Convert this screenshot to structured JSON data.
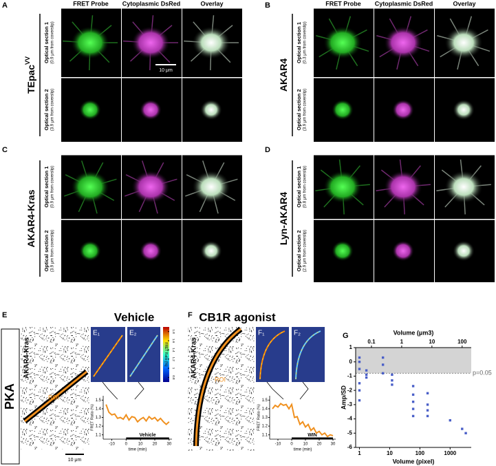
{
  "columns": [
    "FRET Probe",
    "Cytoplasmic DsRed",
    "Overlay"
  ],
  "panels": [
    {
      "label": "A",
      "probe": "TEpac",
      "probe_sup": "VV",
      "sections": [
        {
          "title": "Optical section 1",
          "depth": "(0.9 μm from coverslip)"
        },
        {
          "title": "Optical section 2",
          "depth": "(3.9 μm from coverslip)"
        }
      ],
      "scale_bar": "10 μm"
    },
    {
      "label": "B",
      "probe": "AKAR4",
      "sections": [
        {
          "title": "Optical section 1",
          "depth": "(0.3 μm from coverslip)"
        },
        {
          "title": "Optical section 2",
          "depth": "(3.9 μm from coverslip)"
        }
      ]
    },
    {
      "label": "C",
      "probe": "AKAR4-Kras",
      "sections": [
        {
          "title": "Optical section 1",
          "depth": "(0.9 μm from coverslip)"
        },
        {
          "title": "Optical section 2",
          "depth": "(3.9 μm from coverslip)"
        }
      ]
    },
    {
      "label": "D",
      "probe": "Lyn-AKAR4",
      "sections": [
        {
          "title": "Optical section 1",
          "depth": "(0.8 μm from coverslip)"
        },
        {
          "title": "Optical section 2",
          "depth": "(2.9 μm from coverslip)"
        }
      ]
    }
  ],
  "pka": "PKA",
  "live": [
    {
      "label": "E",
      "title": "Vehicle",
      "probe": "AKAR4-Kras",
      "roi": "ROI",
      "scale_bar": "10 μm",
      "insets": [
        "E₁",
        "E₂"
      ],
      "colorbar": {
        "label": "FRET Ratio (%)",
        "lim": [
          0.7,
          1.9
        ],
        "ticks": [
          0.8,
          1,
          1.2,
          1.4,
          1.6,
          1.8
        ]
      }
    },
    {
      "label": "F",
      "title": "CB1R agonist",
      "probe": "AKAR4-Kras",
      "roi": "ROI",
      "insets": [
        "F₁",
        "F₂"
      ]
    }
  ],
  "g_label": "G",
  "chart_data": [
    {
      "type": "line",
      "ylabel": "FRET Ratio (%)",
      "xlabel": "time (min)",
      "x": [
        -14,
        -12,
        -10,
        -8,
        -6,
        -4,
        -2,
        0,
        2,
        4,
        6,
        8,
        10,
        12,
        14,
        16,
        18,
        20,
        22,
        24,
        26,
        28,
        30
      ],
      "series": [
        {
          "color": "#f0901e",
          "values": [
            1.45,
            1.36,
            1.33,
            1.34,
            1.29,
            1.3,
            1.28,
            1.33,
            1.27,
            1.31,
            1.3,
            1.25,
            1.28,
            1.3,
            1.26,
            1.31,
            1.28,
            1.3,
            1.26,
            1.29,
            1.25,
            1.22,
            1.25
          ]
        }
      ],
      "xlim": [
        -16,
        32
      ],
      "ylim": [
        1.05,
        1.55
      ],
      "xticks": [
        -10,
        0,
        10,
        20,
        30
      ],
      "yticks": [
        1.1,
        1.2,
        1.3,
        1.4,
        1.5
      ],
      "treatment": {
        "label": "Vehicle",
        "start": 0,
        "end": 30
      }
    },
    {
      "type": "line",
      "ylabel": "FRET Ratio (%)",
      "xlabel": "time (min)",
      "x": [
        -14,
        -12,
        -10,
        -8,
        -6,
        -4,
        -2,
        0,
        2,
        4,
        6,
        8,
        10,
        12,
        14,
        16,
        18,
        20,
        22,
        24,
        26,
        28,
        30
      ],
      "series": [
        {
          "color": "#f0901e",
          "values": [
            1.4,
            1.44,
            1.42,
            1.46,
            1.44,
            1.45,
            1.4,
            1.45,
            1.3,
            1.31,
            1.22,
            1.25,
            1.19,
            1.22,
            1.15,
            1.18,
            1.12,
            1.14,
            1.1,
            1.12,
            1.08,
            1.1,
            1.09
          ]
        }
      ],
      "xlim": [
        -16,
        32
      ],
      "ylim": [
        1.05,
        1.55
      ],
      "xticks": [
        -10,
        0,
        10,
        20,
        30
      ],
      "yticks": [
        1.1,
        1.2,
        1.3,
        1.4,
        1.5
      ],
      "treatment": {
        "label": "WIN",
        "start": 0,
        "end": 30
      }
    },
    {
      "type": "scatter",
      "ylabel": "Amp/SD",
      "xlabel": "Volume (pixel)",
      "x2label": "Volume (μm3)",
      "xlog": true,
      "xlim": [
        0.75,
        5000
      ],
      "xticks": [
        1,
        10,
        100,
        1000
      ],
      "x2lim": [
        0.03,
        200
      ],
      "x2ticks": [
        0.1,
        1,
        10,
        100
      ],
      "ylim": [
        -6,
        1
      ],
      "yticks": [
        1,
        0,
        -1,
        -2,
        -3,
        -4,
        -5,
        -6
      ],
      "threshold": {
        "value": -0.8,
        "label": "p=0.05"
      },
      "x": [
        1,
        1,
        1,
        1,
        1,
        1,
        1.7,
        1.7,
        1.7,
        6,
        6,
        6,
        12,
        12,
        12,
        60,
        60,
        60,
        60,
        60,
        180,
        180,
        180,
        180,
        1000,
        2500,
        3300
      ],
      "series": [
        {
          "color": "#4a5fc8",
          "values": [
            0.3,
            0,
            -0.5,
            -1.5,
            -2,
            -2.7,
            -0.6,
            -0.9,
            -1.1,
            0.3,
            -0.2,
            -0.8,
            -0.9,
            -1.3,
            -1.6,
            -1.7,
            -2.3,
            -2.8,
            -3.3,
            -3.8,
            -2.2,
            -3.0,
            -3.4,
            -3.8,
            -4.1,
            -4.7,
            -5.0
          ]
        }
      ]
    }
  ]
}
